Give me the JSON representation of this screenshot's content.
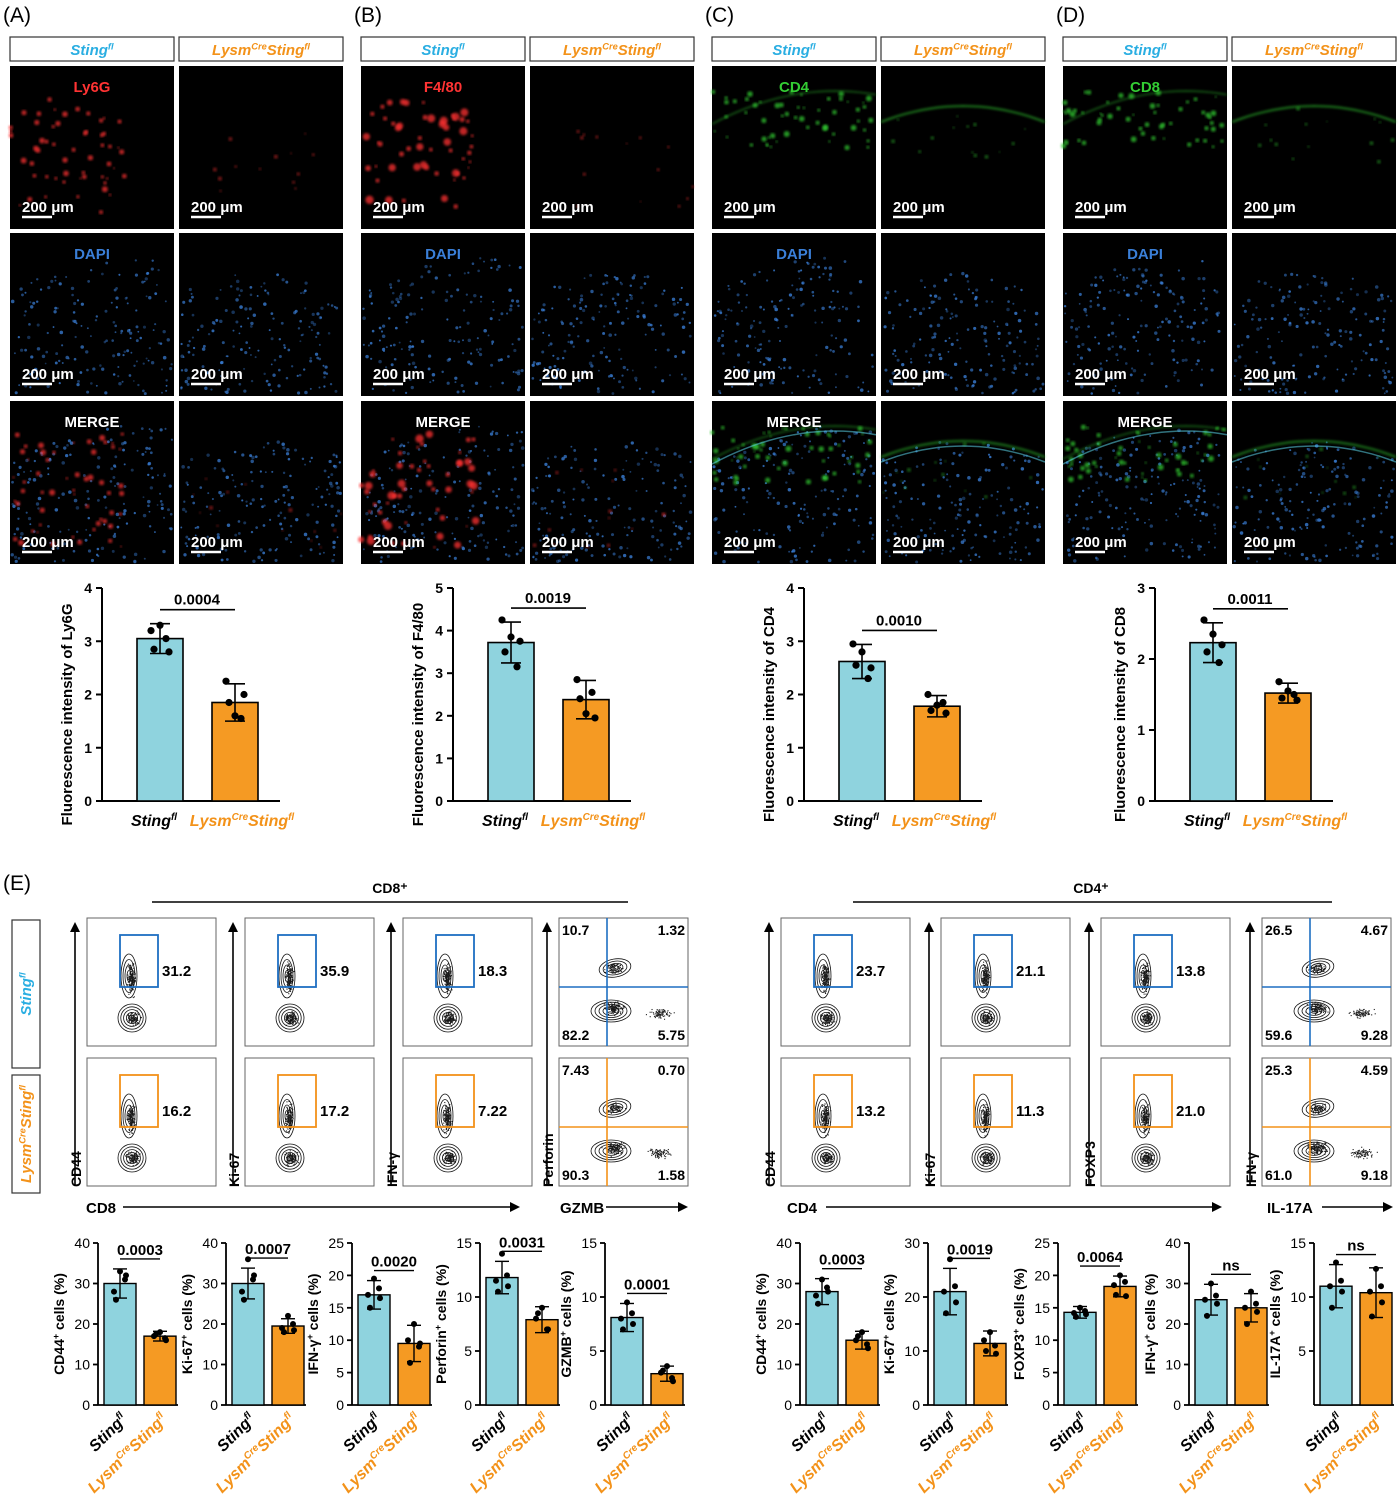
{
  "colors": {
    "control": "#2aaee2",
    "knockout": "#f39219",
    "bar_control": "#8fd3de",
    "bar_knockout": "#f59a23",
    "gate_control": "#1e6fc2",
    "gate_knockout": "#f39219",
    "red_stain": "#ff3333",
    "green_stain": "#33cc33",
    "blue_stain": "#3a7fd8"
  },
  "groups": {
    "control": {
      "main": "Sting",
      "sup": "fl"
    },
    "knockout": {
      "pre": "Lysm",
      "presup": "Cre",
      "main": "Sting",
      "sup": "fl"
    }
  },
  "panels_top": [
    {
      "letter": "(A)",
      "channel_label": "Ly6G",
      "channel_color": "red",
      "dapi_label": "DAPI",
      "merge_label": "MERGE",
      "scale_label": "200 μm",
      "chart": {
        "type": "bar",
        "ylabel": "Fluorescence intensity of Ly6G",
        "ylim": [
          0,
          4
        ],
        "yticks": [
          "0",
          "1",
          "2",
          "3",
          "4"
        ],
        "p_value": "0.0004",
        "control": {
          "mean": 3.05,
          "sd": 0.28,
          "points": [
            3.2,
            2.85,
            3.3,
            3.05,
            2.8
          ]
        },
        "knockout": {
          "mean": 1.85,
          "sd": 0.35,
          "points": [
            2.25,
            1.85,
            1.6,
            1.55,
            2.0
          ]
        }
      }
    },
    {
      "letter": "(B)",
      "channel_label": "F4/80",
      "channel_color": "red",
      "dapi_label": "DAPI",
      "merge_label": "MERGE",
      "scale_label": "200 μm",
      "chart": {
        "type": "bar",
        "ylabel": "Fluorescence intensity of F4/80",
        "ylim": [
          0,
          5
        ],
        "yticks": [
          "0",
          "1",
          "2",
          "3",
          "4",
          "5"
        ],
        "p_value": "0.0019",
        "control": {
          "mean": 3.72,
          "sd": 0.48,
          "points": [
            4.25,
            3.5,
            3.85,
            3.15,
            3.75
          ]
        },
        "knockout": {
          "mean": 2.38,
          "sd": 0.45,
          "points": [
            2.85,
            2.4,
            2.05,
            2.55,
            1.95
          ]
        }
      }
    },
    {
      "letter": "(C)",
      "channel_label": "CD4",
      "channel_color": "green",
      "dapi_label": "DAPI",
      "merge_label": "MERGE",
      "scale_label": "200 μm",
      "chart": {
        "type": "bar",
        "ylabel": "Fluorescence intensity of CD4",
        "ylim": [
          0,
          4
        ],
        "yticks": [
          "0",
          "1",
          "2",
          "3",
          "4"
        ],
        "p_value": "0.0010",
        "control": {
          "mean": 2.62,
          "sd": 0.32,
          "points": [
            2.95,
            2.55,
            2.8,
            2.3,
            2.5
          ]
        },
        "knockout": {
          "mean": 1.78,
          "sd": 0.2,
          "points": [
            2.0,
            1.7,
            1.8,
            1.85,
            1.65
          ]
        }
      }
    },
    {
      "letter": "(D)",
      "channel_label": "CD8",
      "channel_color": "green",
      "dapi_label": "DAPI",
      "merge_label": "MERGE",
      "scale_label": "200 μm",
      "chart": {
        "type": "bar",
        "ylabel": "Fluorescence intensity of CD8",
        "ylim": [
          0,
          3
        ],
        "yticks": [
          "0",
          "1",
          "2",
          "3"
        ],
        "p_value": "0.0011",
        "control": {
          "mean": 2.23,
          "sd": 0.28,
          "points": [
            2.55,
            2.1,
            2.35,
            1.95,
            2.2
          ]
        },
        "knockout": {
          "mean": 1.52,
          "sd": 0.14,
          "points": [
            1.68,
            1.45,
            1.55,
            1.5,
            1.42
          ]
        }
      }
    }
  ],
  "panel_e": {
    "letter": "(E)",
    "cd8_header": "CD8⁺",
    "cd4_header": "CD4⁺",
    "flow_cd8": [
      {
        "ylabel": "CD44",
        "xlabel": "CD8",
        "type": "gate",
        "control_value": "31.2",
        "knockout_value": "16.2"
      },
      {
        "ylabel": "Ki-67",
        "xlabel": "",
        "type": "gate",
        "control_value": "35.9",
        "knockout_value": "17.2"
      },
      {
        "ylabel": "IFN-γ",
        "xlabel": "",
        "type": "gate",
        "control_value": "18.3",
        "knockout_value": "7.22"
      },
      {
        "ylabel": "Perforin",
        "xlabel": "GZMB",
        "type": "quadrant",
        "control_quads": [
          "10.7",
          "1.32",
          "82.2",
          "5.75"
        ],
        "knockout_quads": [
          "7.43",
          "0.70",
          "90.3",
          "1.58"
        ]
      }
    ],
    "flow_cd4": [
      {
        "ylabel": "CD44",
        "xlabel": "CD4",
        "type": "gate",
        "control_value": "23.7",
        "knockout_value": "13.2"
      },
      {
        "ylabel": "Ki-67",
        "xlabel": "",
        "type": "gate",
        "control_value": "21.1",
        "knockout_value": "11.3"
      },
      {
        "ylabel": "FOXP3",
        "xlabel": "",
        "type": "gate",
        "control_value": "13.8",
        "knockout_value": "21.0"
      },
      {
        "ylabel": "IFN-γ",
        "xlabel": "IL-17A",
        "type": "quadrant",
        "control_quads": [
          "26.5",
          "4.67",
          "59.6",
          "9.28"
        ],
        "knockout_quads": [
          "25.3",
          "4.59",
          "61.0",
          "9.18"
        ]
      }
    ],
    "charts": [
      {
        "type": "bar",
        "ylabel_main": "CD44",
        "ylabel_sup": "+",
        "ylabel_rest": " cells (%)",
        "ylim": [
          0,
          40
        ],
        "yticks": [
          "0",
          "10",
          "20",
          "30",
          "40"
        ],
        "p_value": "0.0003",
        "control": {
          "mean": 30,
          "sd": 3.6,
          "points": [
            33,
            28,
            31,
            26,
            32
          ]
        },
        "knockout": {
          "mean": 17,
          "sd": 1.2,
          "points": [
            18,
            17,
            16.5,
            17.5,
            16
          ]
        }
      },
      {
        "type": "bar",
        "ylabel_main": "Ki-67",
        "ylabel_sup": "+",
        "ylabel_rest": " cells (%)",
        "ylim": [
          0,
          40
        ],
        "yticks": [
          "0",
          "10",
          "20",
          "30",
          "40"
        ],
        "p_value": "0.0007",
        "control": {
          "mean": 30,
          "sd": 3.8,
          "points": [
            36,
            28,
            31,
            26,
            32
          ]
        },
        "knockout": {
          "mean": 19.5,
          "sd": 1.8,
          "points": [
            22,
            19,
            20,
            18,
            18.5
          ]
        }
      },
      {
        "type": "bar",
        "ylabel_main": "IFN-γ",
        "ylabel_sup": "+",
        "ylabel_rest": " cells (%)",
        "ylim": [
          0,
          25
        ],
        "yticks": [
          "0",
          "5",
          "10",
          "15",
          "20",
          "25"
        ],
        "p_value": "0.0020",
        "control": {
          "mean": 17,
          "sd": 2.2,
          "points": [
            19.5,
            17,
            18,
            15,
            16.5
          ]
        },
        "knockout": {
          "mean": 9.5,
          "sd": 2.8,
          "points": [
            12.5,
            10,
            9,
            6.5,
            9.5
          ]
        }
      },
      {
        "type": "bar",
        "ylabel_main": "Perforin",
        "ylabel_sup": "+",
        "ylabel_rest": " cells (%)",
        "ylim": [
          0,
          15
        ],
        "yticks": [
          "0",
          "5",
          "10",
          "15"
        ],
        "p_value": "0.0031",
        "control": {
          "mean": 11.8,
          "sd": 1.5,
          "points": [
            14,
            11.5,
            12,
            10.5,
            11
          ]
        },
        "knockout": {
          "mean": 7.9,
          "sd": 1.2,
          "points": [
            9,
            8,
            7,
            8.5,
            7
          ]
        }
      },
      {
        "type": "bar",
        "ylabel_main": "GZMB",
        "ylabel_sup": "+",
        "ylabel_rest": " cells (%)",
        "ylim": [
          0,
          15
        ],
        "yticks": [
          "0",
          "5",
          "10",
          "15"
        ],
        "p_value": "0.0001",
        "control": {
          "mean": 8.1,
          "sd": 1.3,
          "points": [
            9.5,
            8,
            8.5,
            7,
            7.5
          ]
        },
        "knockout": {
          "mean": 2.9,
          "sd": 0.7,
          "points": [
            3.6,
            3,
            2.5,
            3.2,
            2.2
          ]
        }
      },
      {
        "type": "bar",
        "ylabel_main": "CD44",
        "ylabel_sup": "+",
        "ylabel_rest": " cells (%)",
        "ylim": [
          0,
          40
        ],
        "yticks": [
          "0",
          "10",
          "20",
          "30",
          "40"
        ],
        "p_value": "0.0003",
        "control": {
          "mean": 28,
          "sd": 3.2,
          "points": [
            31,
            27,
            29,
            25,
            28
          ]
        },
        "knockout": {
          "mean": 16,
          "sd": 2.2,
          "points": [
            18,
            16,
            15,
            17,
            14
          ]
        }
      },
      {
        "type": "bar",
        "ylabel_main": "Ki-67",
        "ylabel_sup": "+",
        "ylabel_rest": " cells (%)",
        "ylim": [
          0,
          30
        ],
        "yticks": [
          "0",
          "10",
          "20",
          "30"
        ],
        "p_value": "0.0019",
        "control": {
          "mean": 21,
          "sd": 4.3,
          "points": [
            27,
            21,
            22,
            17,
            19
          ]
        },
        "knockout": {
          "mean": 11.4,
          "sd": 2.3,
          "points": [
            13.5,
            12,
            11,
            10,
            9.5
          ]
        }
      },
      {
        "type": "bar",
        "ylabel_main": "FOXP3",
        "ylabel_sup": "+",
        "ylabel_rest": " cells (%)",
        "ylim": [
          0,
          25
        ],
        "yticks": [
          "0",
          "5",
          "10",
          "15",
          "20",
          "25"
        ],
        "p_value": "0.0064",
        "control": {
          "mean": 14.3,
          "sd": 0.9,
          "points": [
            15,
            14.2,
            14.5,
            13.6,
            14
          ]
        },
        "knockout": {
          "mean": 18.3,
          "sd": 1.6,
          "points": [
            20,
            18.5,
            19,
            17,
            16.8
          ]
        }
      },
      {
        "type": "bar",
        "ylabel_main": "IFN-γ",
        "ylabel_sup": "+",
        "ylabel_rest": " cells (%)",
        "ylim": [
          0,
          40
        ],
        "yticks": [
          "0",
          "10",
          "20",
          "30",
          "40"
        ],
        "p_value": "ns",
        "control": {
          "mean": 26,
          "sd": 3.8,
          "points": [
            30,
            26,
            27,
            22,
            25
          ]
        },
        "knockout": {
          "mean": 24,
          "sd": 3.5,
          "points": [
            28,
            24,
            25,
            20,
            23
          ]
        }
      },
      {
        "type": "bar",
        "ylabel_main": "IL-17A",
        "ylabel_sup": "+",
        "ylabel_rest": " cells (%)",
        "ylim": [
          0,
          15
        ],
        "yticks": [
          "5",
          "10",
          "15"
        ],
        "p_value": "ns",
        "control": {
          "mean": 11,
          "sd": 2.0,
          "points": [
            13.2,
            11,
            11.5,
            9,
            10.5
          ]
        },
        "knockout": {
          "mean": 10.4,
          "sd": 2.3,
          "points": [
            12.6,
            10.5,
            11,
            8.2,
            9.5
          ]
        }
      }
    ]
  }
}
